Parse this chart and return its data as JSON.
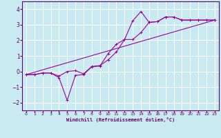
{
  "title": "",
  "xlabel": "Windchill (Refroidissement éolien,°C)",
  "background_color": "#c8eaf0",
  "grid_color": "#ffffff",
  "line_color": "#990099",
  "xlim": [
    -0.5,
    23.5
  ],
  "ylim": [
    -2.5,
    4.5
  ],
  "yticks": [
    -2,
    -1,
    0,
    1,
    2,
    3,
    4
  ],
  "xticks": [
    0,
    1,
    2,
    3,
    4,
    5,
    6,
    7,
    8,
    9,
    10,
    11,
    12,
    13,
    14,
    15,
    16,
    17,
    18,
    19,
    20,
    21,
    22,
    23
  ],
  "curve1_x": [
    0,
    1,
    2,
    3,
    4,
    5,
    6,
    7,
    8,
    9,
    10,
    11,
    12,
    13,
    14,
    15,
    16,
    17,
    18,
    19,
    20,
    21,
    22,
    23
  ],
  "curve1_y": [
    -0.2,
    -0.2,
    -0.1,
    -0.1,
    -0.4,
    -1.85,
    -0.25,
    -0.2,
    0.3,
    0.35,
    1.15,
    1.75,
    2.05,
    3.25,
    3.85,
    3.15,
    3.2,
    3.5,
    3.5,
    3.3,
    3.3,
    3.3,
    3.3,
    3.3
  ],
  "curve2_x": [
    0,
    1,
    2,
    3,
    4,
    5,
    6,
    7,
    8,
    9,
    10,
    11,
    12,
    13,
    14,
    15,
    16,
    17,
    18,
    19,
    20,
    21,
    22,
    23
  ],
  "curve2_y": [
    -0.2,
    -0.2,
    -0.1,
    -0.1,
    -0.3,
    0.0,
    0.05,
    -0.15,
    0.32,
    0.38,
    0.75,
    1.25,
    2.05,
    2.05,
    2.5,
    3.15,
    3.2,
    3.5,
    3.5,
    3.3,
    3.3,
    3.3,
    3.3,
    3.3
  ],
  "curve3_x": [
    0,
    23
  ],
  "curve3_y": [
    -0.2,
    3.3
  ],
  "marker": "+"
}
